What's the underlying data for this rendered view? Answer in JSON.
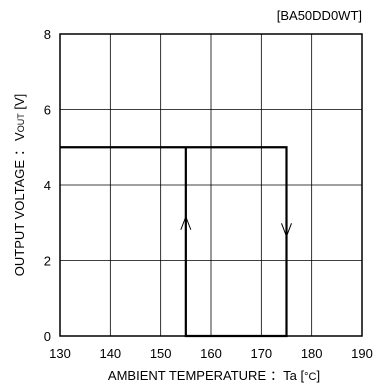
{
  "chart_data": {
    "type": "line",
    "model_label": "[BA50DD0WT]",
    "xlabel_main": "AMBIENT TEMPERATURE",
    "xlabel_sep": "：",
    "xlabel_unit_prefix": "Ta [",
    "xlabel_unit_deg": "°C",
    "xlabel_unit_suffix": "]",
    "ylabel_main": "OUTPUT VOLTAGE",
    "ylabel_sep": "：",
    "ylabel_v": "V",
    "ylabel_sub": "OUT",
    "ylabel_unit": " [V]",
    "xlim": [
      130,
      190
    ],
    "ylim": [
      0,
      8
    ],
    "x_ticks": [
      "130",
      "140",
      "150",
      "160",
      "170",
      "180",
      "190"
    ],
    "y_ticks": [
      "0",
      "2",
      "4",
      "6",
      "8"
    ],
    "grid": true,
    "series": [
      {
        "points": [
          [
            130,
            5
          ],
          [
            175,
            5
          ],
          [
            175,
            0
          ],
          [
            155,
            0
          ],
          [
            155,
            5
          ]
        ]
      }
    ],
    "annotations": [
      {
        "type": "arrow-up",
        "x": 155,
        "y": 3
      },
      {
        "type": "arrow-down",
        "x": 175,
        "y": 2.8
      }
    ]
  }
}
